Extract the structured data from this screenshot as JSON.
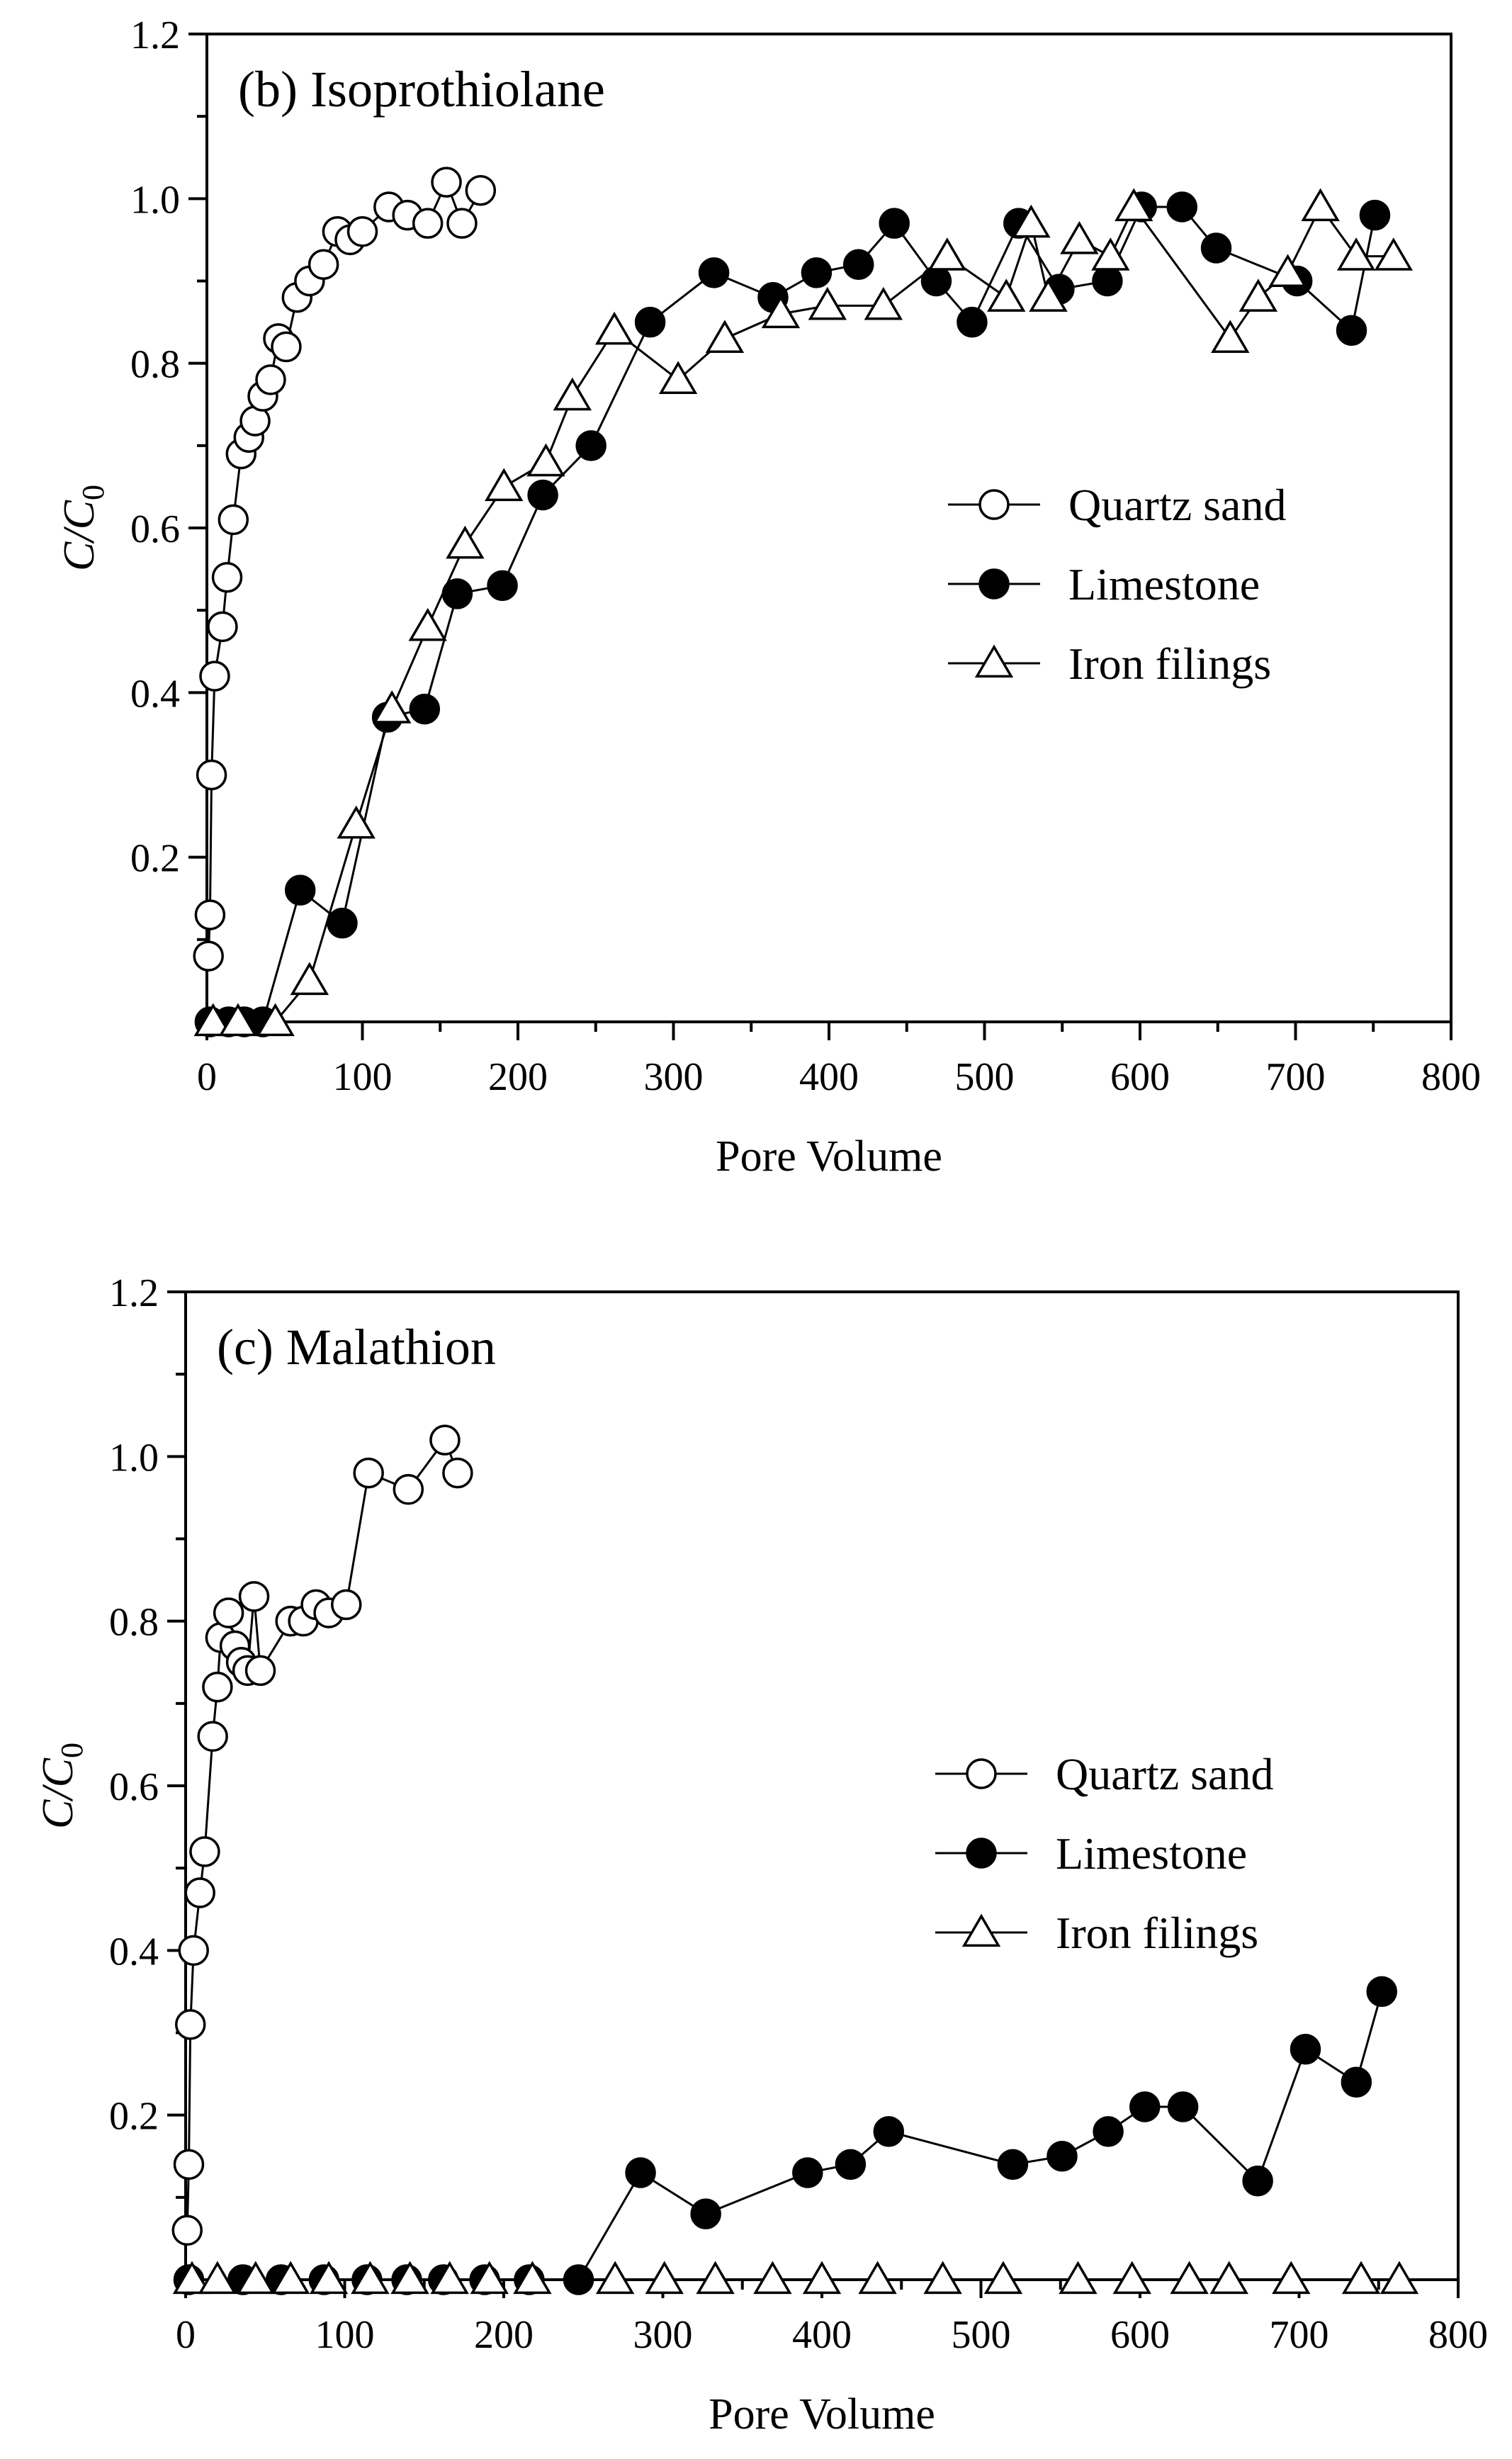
{
  "chart_data": [
    {
      "type": "line",
      "title": "(b) Isoprothiolane",
      "xlabel": "Pore Volume",
      "ylabel": "C/C0",
      "xlim": [
        0,
        800
      ],
      "ylim": [
        0,
        1.2
      ],
      "xticks": [
        0,
        100,
        200,
        300,
        400,
        500,
        600,
        700,
        800
      ],
      "yticks": [
        0.2,
        0.4,
        0.6,
        0.8,
        1.0,
        1.2
      ],
      "xtick_labels": [
        "0",
        "100",
        "200",
        "300",
        "400",
        "500",
        "600",
        "700",
        "800"
      ],
      "ytick_labels": [
        "0.2",
        "0.4",
        "0.6",
        "0.8",
        "1.0",
        "1.2"
      ],
      "legend_position": "center-right",
      "series": [
        {
          "name": "Quartz sand",
          "marker": "open-circle",
          "points": [
            [
              1,
              0.08
            ],
            [
              2,
              0.13
            ],
            [
              3,
              0.3
            ],
            [
              5,
              0.42
            ],
            [
              10,
              0.48
            ],
            [
              13,
              0.54
            ],
            [
              17,
              0.61
            ],
            [
              22,
              0.69
            ],
            [
              27,
              0.71
            ],
            [
              31,
              0.73
            ],
            [
              36,
              0.76
            ],
            [
              41,
              0.78
            ],
            [
              46,
              0.83
            ],
            [
              51,
              0.82
            ],
            [
              58,
              0.88
            ],
            [
              66,
              0.9
            ],
            [
              75,
              0.92
            ],
            [
              84,
              0.96
            ],
            [
              92,
              0.95
            ],
            [
              100,
              0.96
            ],
            [
              117,
              0.99
            ],
            [
              129,
              0.98
            ],
            [
              142,
              0.97
            ],
            [
              154,
              1.02
            ],
            [
              164,
              0.97
            ],
            [
              176,
              1.01
            ]
          ]
        },
        {
          "name": "Limestone",
          "marker": "filled-circle",
          "points": [
            [
              2,
              0.0
            ],
            [
              14,
              0.0
            ],
            [
              24,
              0.0
            ],
            [
              36,
              0.0
            ],
            [
              60,
              0.16
            ],
            [
              87,
              0.12
            ],
            [
              116,
              0.37
            ],
            [
              140,
              0.38
            ],
            [
              161,
              0.52
            ],
            [
              190,
              0.53
            ],
            [
              216,
              0.64
            ],
            [
              247,
              0.7
            ],
            [
              285,
              0.85
            ],
            [
              326,
              0.91
            ],
            [
              364,
              0.88
            ],
            [
              392,
              0.91
            ],
            [
              419,
              0.92
            ],
            [
              442,
              0.97
            ],
            [
              469,
              0.9
            ],
            [
              492,
              0.85
            ],
            [
              522,
              0.97
            ],
            [
              548,
              0.89
            ],
            [
              579,
              0.9
            ],
            [
              601,
              0.99
            ],
            [
              627,
              0.99
            ],
            [
              649,
              0.94
            ],
            [
              701,
              0.9
            ],
            [
              736,
              0.84
            ],
            [
              751,
              0.98
            ]
          ]
        },
        {
          "name": "Iron filings",
          "marker": "open-triangle",
          "points": [
            [
              4,
              0.0
            ],
            [
              20,
              0.0
            ],
            [
              44,
              0.0
            ],
            [
              66,
              0.05
            ],
            [
              96,
              0.24
            ],
            [
              119,
              0.38
            ],
            [
              142,
              0.48
            ],
            [
              166,
              0.58
            ],
            [
              191,
              0.65
            ],
            [
              218,
              0.68
            ],
            [
              235,
              0.76
            ],
            [
              262,
              0.84
            ],
            [
              303,
              0.78
            ],
            [
              333,
              0.83
            ],
            [
              369,
              0.86
            ],
            [
              399,
              0.87
            ],
            [
              435,
              0.87
            ],
            [
              476,
              0.93
            ],
            [
              514,
              0.88
            ],
            [
              530,
              0.97
            ],
            [
              541,
              0.88
            ],
            [
              561,
              0.95
            ],
            [
              581,
              0.93
            ],
            [
              596,
              0.99
            ],
            [
              658,
              0.83
            ],
            [
              676,
              0.88
            ],
            [
              695,
              0.91
            ],
            [
              716,
              0.99
            ],
            [
              739,
              0.93
            ],
            [
              763,
              0.93
            ]
          ]
        }
      ]
    },
    {
      "type": "line",
      "title": "(c) Malathion",
      "xlabel": "Pore Volume",
      "ylabel": "C/C0",
      "xlim": [
        0,
        800
      ],
      "ylim": [
        0,
        1.2
      ],
      "xticks": [
        0,
        100,
        200,
        300,
        400,
        500,
        600,
        700,
        800
      ],
      "yticks": [
        0.2,
        0.4,
        0.6,
        0.8,
        1.0,
        1.2
      ],
      "xtick_labels": [
        "0",
        "100",
        "200",
        "300",
        "400",
        "500",
        "600",
        "700",
        "800"
      ],
      "ytick_labels": [
        "0.2",
        "0.4",
        "0.6",
        "0.8",
        "1.0",
        "1.2"
      ],
      "legend_position": "center-right",
      "series": [
        {
          "name": "Quartz sand",
          "marker": "open-circle",
          "points": [
            [
              1,
              0.06
            ],
            [
              2,
              0.14
            ],
            [
              3,
              0.31
            ],
            [
              5,
              0.4
            ],
            [
              9,
              0.47
            ],
            [
              12,
              0.52
            ],
            [
              17,
              0.66
            ],
            [
              20,
              0.72
            ],
            [
              22,
              0.78
            ],
            [
              27,
              0.81
            ],
            [
              31,
              0.77
            ],
            [
              35,
              0.75
            ],
            [
              39,
              0.74
            ],
            [
              43,
              0.83
            ],
            [
              47,
              0.74
            ],
            [
              66,
              0.8
            ],
            [
              74,
              0.8
            ],
            [
              82,
              0.82
            ],
            [
              90,
              0.81
            ],
            [
              101,
              0.82
            ],
            [
              115,
              0.98
            ],
            [
              140,
              0.96
            ],
            [
              163,
              1.02
            ],
            [
              171,
              0.98
            ]
          ]
        },
        {
          "name": "Limestone",
          "marker": "filled-circle",
          "points": [
            [
              2,
              0.0
            ],
            [
              36,
              0.0
            ],
            [
              60,
              0.0
            ],
            [
              87,
              0.0
            ],
            [
              114,
              0.0
            ],
            [
              139,
              0.0
            ],
            [
              162,
              0.0
            ],
            [
              188,
              0.0
            ],
            [
              216,
              0.0
            ],
            [
              247,
              0.0
            ],
            [
              286,
              0.13
            ],
            [
              327,
              0.08
            ],
            [
              391,
              0.13
            ],
            [
              418,
              0.14
            ],
            [
              442,
              0.18
            ],
            [
              520,
              0.14
            ],
            [
              551,
              0.15
            ],
            [
              580,
              0.18
            ],
            [
              603,
              0.21
            ],
            [
              627,
              0.21
            ],
            [
              674,
              0.12
            ],
            [
              704,
              0.28
            ],
            [
              736,
              0.24
            ],
            [
              752,
              0.35
            ]
          ]
        },
        {
          "name": "Iron filings",
          "marker": "open-triangle",
          "points": [
            [
              4,
              0.0
            ],
            [
              20,
              0.0
            ],
            [
              44,
              0.0
            ],
            [
              66,
              0.0
            ],
            [
              90,
              0.0
            ],
            [
              116,
              0.0
            ],
            [
              141,
              0.0
            ],
            [
              166,
              0.0
            ],
            [
              191,
              0.0
            ],
            [
              218,
              0.0
            ],
            [
              270,
              0.0
            ],
            [
              301,
              0.0
            ],
            [
              333,
              0.0
            ],
            [
              369,
              0.0
            ],
            [
              400,
              0.0
            ],
            [
              435,
              0.0
            ],
            [
              476,
              0.0
            ],
            [
              514,
              0.0
            ],
            [
              561,
              0.0
            ],
            [
              595,
              0.0
            ],
            [
              631,
              0.0
            ],
            [
              656,
              0.0
            ],
            [
              695,
              0.0
            ],
            [
              739,
              0.0
            ],
            [
              763,
              0.0
            ]
          ]
        }
      ]
    }
  ]
}
